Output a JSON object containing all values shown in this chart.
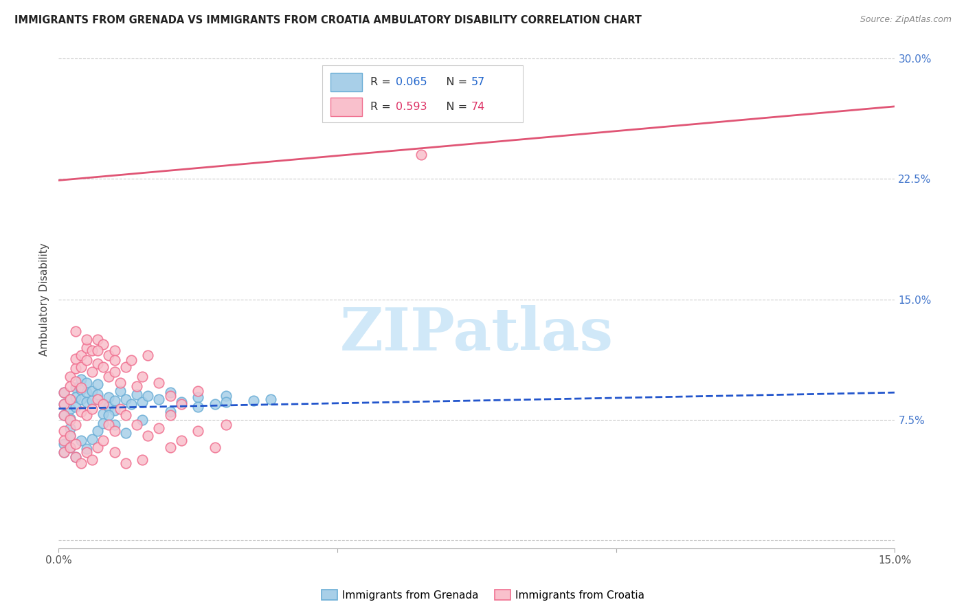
{
  "title": "IMMIGRANTS FROM GRENADA VS IMMIGRANTS FROM CROATIA AMBULATORY DISABILITY CORRELATION CHART",
  "source": "Source: ZipAtlas.com",
  "ylabel": "Ambulatory Disability",
  "xlim": [
    0.0,
    0.15
  ],
  "ylim": [
    -0.005,
    0.305
  ],
  "grenada_R": 0.065,
  "grenada_N": 57,
  "croatia_R": 0.593,
  "croatia_N": 74,
  "grenada_dot_face": "#a8cfe8",
  "grenada_dot_edge": "#6baed6",
  "croatia_dot_face": "#f9c0cc",
  "croatia_dot_edge": "#f07090",
  "grenada_line_color": "#2255cc",
  "croatia_line_color": "#e05575",
  "watermark_text": "ZIPatlas",
  "watermark_color": "#d0e8f8",
  "legend_R1_color": "#2266cc",
  "legend_N1_color": "#2266cc",
  "legend_R2_color": "#dd3366",
  "legend_N2_color": "#dd3366",
  "ytick_vals": [
    0.0,
    0.075,
    0.15,
    0.225,
    0.3
  ],
  "ytick_labels": [
    "",
    "7.5%",
    "15.0%",
    "22.5%",
    "30.0%"
  ],
  "xtick_vals": [
    0.0,
    0.05,
    0.1,
    0.15
  ],
  "xtick_labels": [
    "0.0%",
    "",
    "",
    "15.0%"
  ],
  "grenada_line_y0": 0.082,
  "grenada_line_y1": 0.092,
  "croatia_line_y0": 0.224,
  "croatia_line_y1": 0.27,
  "grenada_x": [
    0.001,
    0.001,
    0.001,
    0.002,
    0.002,
    0.002,
    0.002,
    0.003,
    0.003,
    0.003,
    0.004,
    0.004,
    0.004,
    0.005,
    0.005,
    0.005,
    0.006,
    0.006,
    0.007,
    0.007,
    0.008,
    0.008,
    0.009,
    0.009,
    0.01,
    0.01,
    0.011,
    0.012,
    0.013,
    0.014,
    0.015,
    0.016,
    0.018,
    0.02,
    0.022,
    0.025,
    0.028,
    0.03,
    0.035,
    0.038,
    0.001,
    0.001,
    0.002,
    0.002,
    0.003,
    0.004,
    0.005,
    0.006,
    0.007,
    0.008,
    0.009,
    0.01,
    0.012,
    0.015,
    0.02,
    0.025,
    0.03
  ],
  "grenada_y": [
    0.085,
    0.092,
    0.078,
    0.088,
    0.082,
    0.076,
    0.07,
    0.095,
    0.089,
    0.083,
    0.1,
    0.094,
    0.088,
    0.098,
    0.092,
    0.086,
    0.093,
    0.087,
    0.097,
    0.091,
    0.085,
    0.079,
    0.089,
    0.083,
    0.087,
    0.081,
    0.093,
    0.088,
    0.085,
    0.091,
    0.086,
    0.09,
    0.088,
    0.092,
    0.086,
    0.089,
    0.085,
    0.09,
    0.087,
    0.088,
    0.06,
    0.055,
    0.065,
    0.058,
    0.052,
    0.062,
    0.057,
    0.063,
    0.068,
    0.073,
    0.078,
    0.072,
    0.067,
    0.075,
    0.08,
    0.083,
    0.086
  ],
  "croatia_x": [
    0.001,
    0.001,
    0.001,
    0.002,
    0.002,
    0.002,
    0.003,
    0.003,
    0.003,
    0.004,
    0.004,
    0.004,
    0.005,
    0.005,
    0.006,
    0.006,
    0.007,
    0.007,
    0.008,
    0.008,
    0.009,
    0.009,
    0.01,
    0.01,
    0.011,
    0.012,
    0.013,
    0.014,
    0.015,
    0.016,
    0.018,
    0.02,
    0.022,
    0.025,
    0.001,
    0.002,
    0.003,
    0.004,
    0.005,
    0.006,
    0.007,
    0.008,
    0.009,
    0.01,
    0.011,
    0.012,
    0.014,
    0.016,
    0.018,
    0.02,
    0.022,
    0.025,
    0.028,
    0.03,
    0.001,
    0.001,
    0.002,
    0.002,
    0.003,
    0.003,
    0.004,
    0.005,
    0.006,
    0.007,
    0.008,
    0.01,
    0.012,
    0.015,
    0.003,
    0.005,
    0.007,
    0.01,
    0.065,
    0.02
  ],
  "croatia_y": [
    0.085,
    0.092,
    0.078,
    0.102,
    0.096,
    0.088,
    0.107,
    0.113,
    0.099,
    0.115,
    0.108,
    0.095,
    0.12,
    0.112,
    0.118,
    0.105,
    0.125,
    0.11,
    0.122,
    0.108,
    0.115,
    0.102,
    0.118,
    0.105,
    0.098,
    0.108,
    0.112,
    0.096,
    0.102,
    0.115,
    0.098,
    0.09,
    0.085,
    0.093,
    0.068,
    0.075,
    0.072,
    0.08,
    0.078,
    0.082,
    0.088,
    0.085,
    0.072,
    0.068,
    0.082,
    0.078,
    0.072,
    0.065,
    0.07,
    0.058,
    0.062,
    0.068,
    0.058,
    0.072,
    0.055,
    0.062,
    0.058,
    0.065,
    0.052,
    0.06,
    0.048,
    0.055,
    0.05,
    0.058,
    0.062,
    0.055,
    0.048,
    0.05,
    0.13,
    0.125,
    0.118,
    0.112,
    0.24,
    0.078
  ]
}
